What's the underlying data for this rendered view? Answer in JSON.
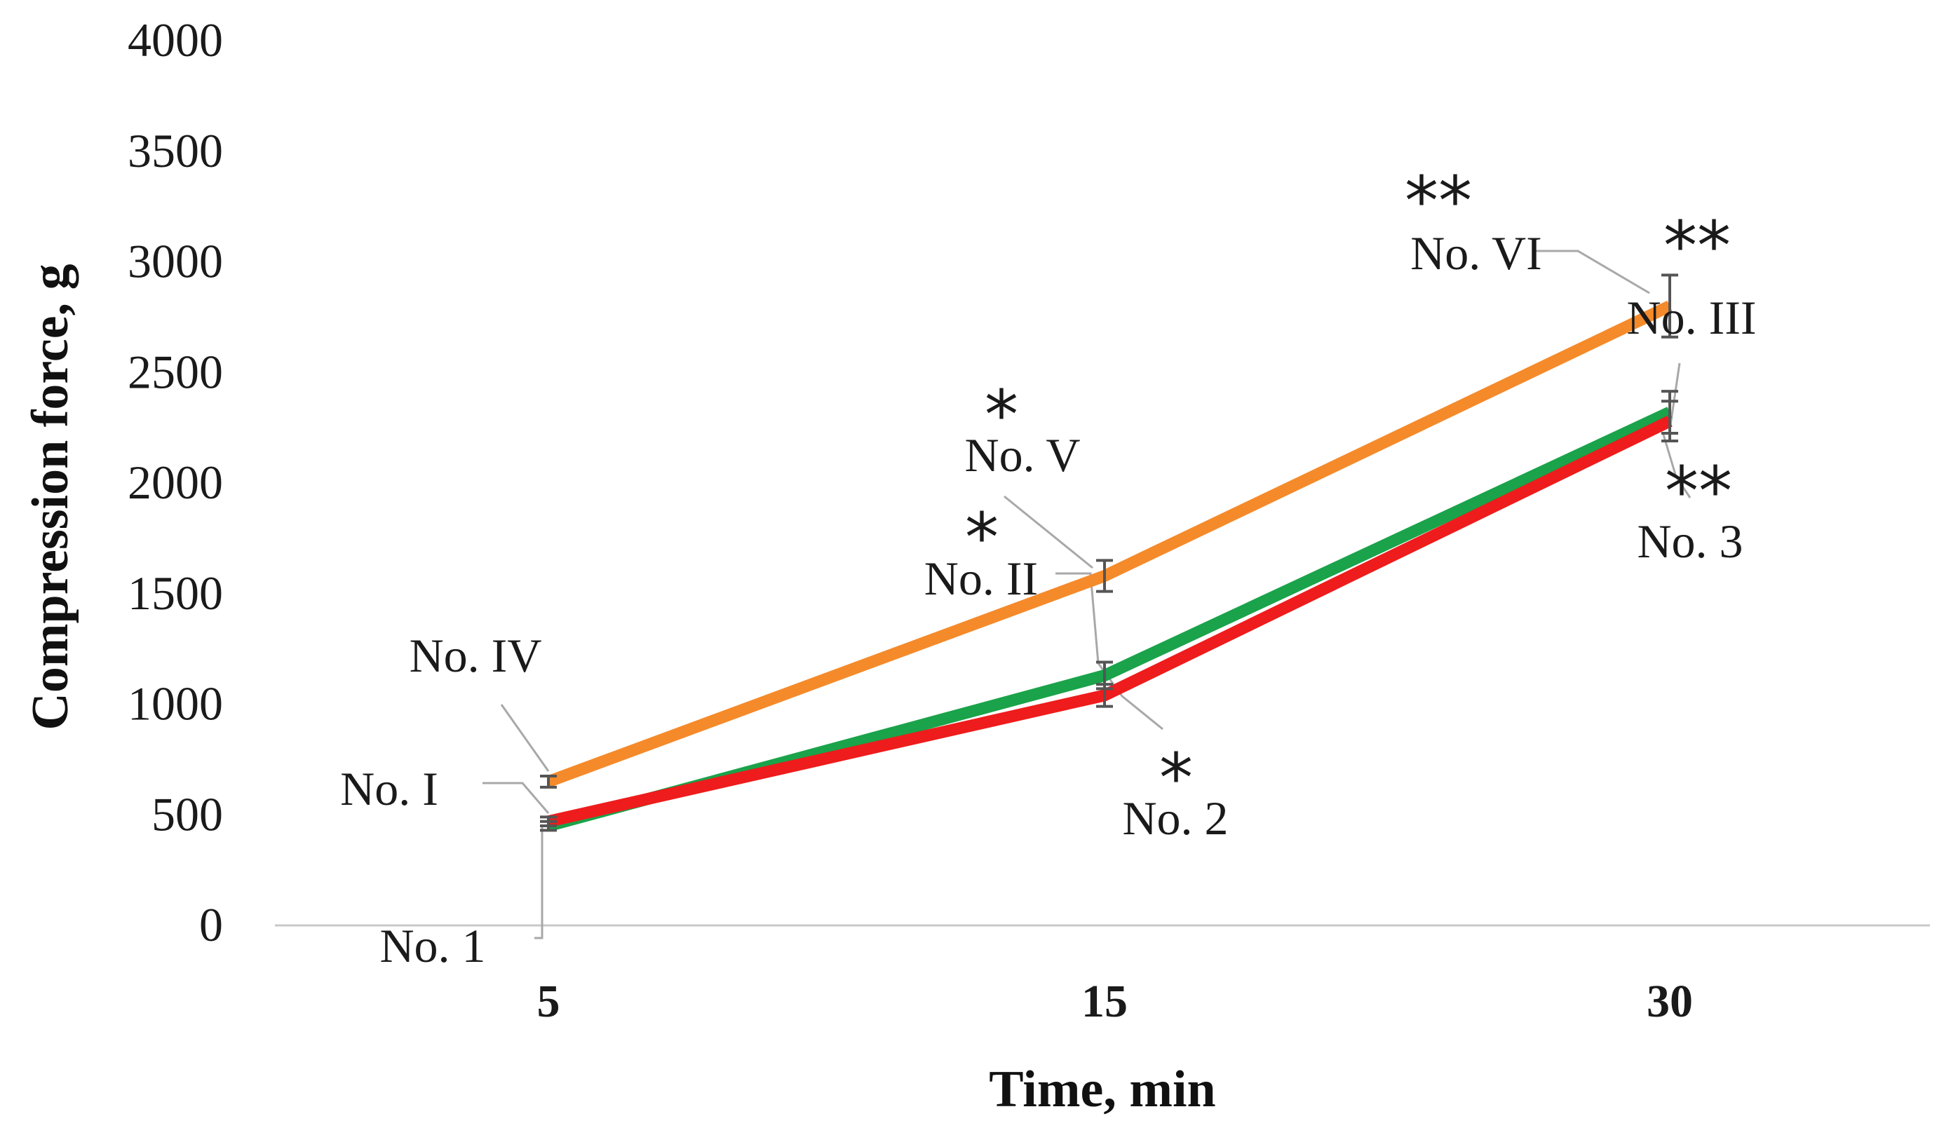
{
  "chart_data": {
    "type": "line",
    "title": "",
    "xlabel": "Time, min",
    "ylabel": "Compression force, g",
    "categories": [
      "5",
      "15",
      "30"
    ],
    "ylim": [
      0,
      4000
    ],
    "yticks": [
      0,
      500,
      1000,
      1500,
      2000,
      2500,
      3000,
      3500,
      4000
    ],
    "grid": false,
    "legend": "none",
    "series": [
      {
        "name": "series-orange",
        "color": "#F58A2A",
        "values": [
          650,
          1580,
          2800
        ],
        "errors": [
          25,
          70,
          140
        ],
        "labels": [
          "No. IV",
          "No. V",
          "No. VI"
        ]
      },
      {
        "name": "series-green",
        "color": "#1AA34A",
        "values": [
          450,
          1130,
          2320
        ],
        "errors": [
          20,
          60,
          95
        ],
        "labels": [
          "No. I",
          "No. II",
          "No. III"
        ]
      },
      {
        "name": "series-red",
        "color": "#EE1C1C",
        "values": [
          470,
          1040,
          2280
        ],
        "errors": [
          20,
          50,
          90
        ],
        "labels": [
          "No. 1",
          "No. 2",
          "No. 3"
        ]
      }
    ],
    "annotations": [
      {
        "id": "no-iv",
        "text": "No. IV",
        "star": ""
      },
      {
        "id": "no-i",
        "text": "No. I",
        "star": ""
      },
      {
        "id": "no-1",
        "text": "No. 1",
        "star": ""
      },
      {
        "id": "no-v",
        "text": "No. V",
        "star": "*"
      },
      {
        "id": "no-ii",
        "text": "No. II",
        "star": "*"
      },
      {
        "id": "no-2",
        "text": "No. 2",
        "star": "*"
      },
      {
        "id": "no-vi",
        "text": "No. VI",
        "star": "**"
      },
      {
        "id": "no-iii",
        "text": "No. III",
        "star": "**"
      },
      {
        "id": "no-3",
        "text": "No. 3",
        "star": "**"
      }
    ]
  }
}
